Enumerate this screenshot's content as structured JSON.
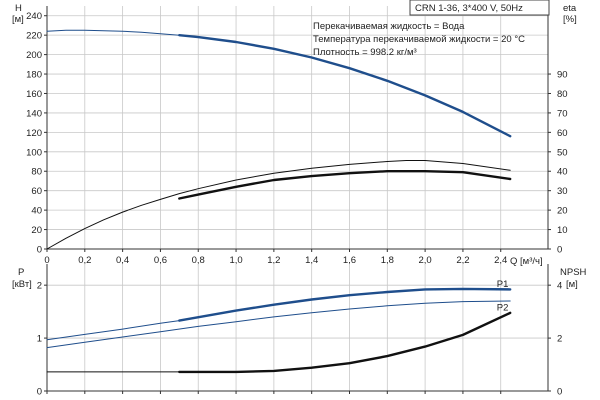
{
  "chart_data": [
    {
      "type": "line",
      "model_label": "CRN 1-36, 3*400 V, 50Hz",
      "notes": [
        "Перекачиваемая жидкость = Вода",
        "Температура перекачиваемой жидкости = 20 °C",
        "Плотность = 998.2 кг/м³"
      ],
      "xlabel": "Q [м³/ч]",
      "x_ticks": [
        "0",
        "0,2",
        "0,4",
        "0,6",
        "0,8",
        "1,0",
        "1,2",
        "1,4",
        "1,6",
        "1,8",
        "2,0",
        "2,2",
        "2,4"
      ],
      "xlim": [
        0,
        2.65
      ],
      "y_left": {
        "label_top": "H",
        "label_unit": "[м]",
        "ylim": [
          0,
          250
        ],
        "ticks": [
          "0",
          "20",
          "40",
          "60",
          "80",
          "100",
          "120",
          "140",
          "160",
          "180",
          "200",
          "220",
          "240"
        ]
      },
      "y_right": {
        "label_top": "eta",
        "label_unit": "[%]",
        "ylim": [
          0,
          125
        ],
        "ticks": [
          "0",
          "10",
          "20",
          "30",
          "40",
          "50",
          "60",
          "70",
          "80",
          "90"
        ]
      },
      "grid": true,
      "series": [
        {
          "axis": "left",
          "color": "#1f4e8c",
          "style": "thin",
          "x": [
            0,
            0.1,
            0.2,
            0.3,
            0.4,
            0.5,
            0.6,
            0.7
          ],
          "y": [
            224,
            225,
            225,
            224.5,
            224,
            223,
            221.5,
            220
          ]
        },
        {
          "axis": "left",
          "color": "#1f4e8c",
          "style": "thick",
          "x": [
            0.7,
            0.8,
            1.0,
            1.2,
            1.4,
            1.6,
            1.8,
            2.0,
            2.2,
            2.45
          ],
          "y": [
            220,
            218,
            213,
            206,
            197,
            186,
            173,
            158,
            141,
            116
          ]
        },
        {
          "axis": "right",
          "color": "#111111",
          "style": "thin",
          "x": [
            0,
            0.1,
            0.2,
            0.3,
            0.4,
            0.5,
            0.6,
            0.7,
            0.8,
            1.0,
            1.2,
            1.4,
            1.6,
            1.8,
            1.9,
            2.0,
            2.2,
            2.45
          ],
          "y": [
            0,
            5.5,
            10.5,
            15,
            19,
            22.5,
            25.5,
            28.5,
            31,
            35.5,
            39,
            41.5,
            43.5,
            45,
            45.5,
            45.5,
            44,
            40.5
          ]
        },
        {
          "axis": "right",
          "color": "#111111",
          "style": "thick",
          "x": [
            0.7,
            0.8,
            1.0,
            1.2,
            1.4,
            1.6,
            1.8,
            1.9,
            2.0,
            2.2,
            2.45
          ],
          "y": [
            26,
            28,
            32,
            35.5,
            37.5,
            39,
            40,
            40,
            40,
            39.5,
            36
          ]
        }
      ]
    },
    {
      "type": "line",
      "xlim": [
        0,
        2.65
      ],
      "y_left": {
        "label_top": "P",
        "label_unit": "[кВт]",
        "ylim": [
          0,
          2.4
        ],
        "ticks": [
          "0",
          "1",
          "2"
        ]
      },
      "y_right": {
        "label_top": "NPSH",
        "label_unit": "[м]",
        "ylim": [
          0,
          4.8
        ],
        "ticks": [
          "0",
          "2",
          "4"
        ]
      },
      "grid": true,
      "series": [
        {
          "name": "P1",
          "axis": "left",
          "color": "#1f4e8c",
          "style": "thin",
          "x": [
            0,
            0.2,
            0.4,
            0.6,
            0.7
          ],
          "y": [
            0.97,
            1.07,
            1.17,
            1.28,
            1.33
          ]
        },
        {
          "name": "P1",
          "axis": "left",
          "color": "#1f4e8c",
          "style": "thick",
          "x": [
            0.7,
            1.0,
            1.2,
            1.4,
            1.6,
            1.8,
            2.0,
            2.2,
            2.45
          ],
          "y": [
            1.33,
            1.52,
            1.63,
            1.73,
            1.81,
            1.87,
            1.92,
            1.93,
            1.92
          ]
        },
        {
          "name": "P2",
          "axis": "left",
          "color": "#1f4e8c",
          "style": "thin",
          "x": [
            0,
            0.2,
            0.4,
            0.6,
            0.8,
            1.0,
            1.2,
            1.4,
            1.6,
            1.8,
            2.0,
            2.2,
            2.45
          ],
          "y": [
            0.82,
            0.92,
            1.02,
            1.12,
            1.22,
            1.31,
            1.4,
            1.48,
            1.55,
            1.61,
            1.66,
            1.69,
            1.7
          ]
        },
        {
          "axis": "right",
          "color": "#111111",
          "style": "thin",
          "x": [
            0,
            0.7
          ],
          "y": [
            0.72,
            0.72
          ]
        },
        {
          "axis": "right",
          "color": "#111111",
          "style": "thick",
          "x": [
            0.7,
            1.0,
            1.2,
            1.4,
            1.6,
            1.8,
            2.0,
            2.2,
            2.45
          ],
          "y": [
            0.72,
            0.72,
            0.76,
            0.88,
            1.05,
            1.32,
            1.68,
            2.12,
            2.95
          ]
        }
      ],
      "curve_labels": [
        {
          "text": "P1",
          "x": 2.4,
          "y": 2.02
        },
        {
          "text": "P2",
          "x": 2.4,
          "y": 1.58
        }
      ]
    }
  ]
}
